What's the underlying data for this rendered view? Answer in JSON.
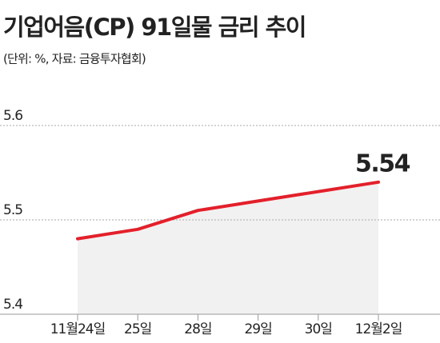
{
  "chart_data": {
    "type": "line",
    "title": "기업어음(CP) 91일물 금리 추이",
    "subtitle": "(단위: %, 자료: 금융투자협회)",
    "categories": [
      "11월24일",
      "25일",
      "28일",
      "29일",
      "30일",
      "12월2일"
    ],
    "values": [
      5.48,
      5.49,
      5.51,
      5.52,
      5.53,
      5.54
    ],
    "color": "#e3202b",
    "ylim": [
      5.4,
      5.6
    ],
    "yticks": [
      5.4,
      5.5,
      5.6
    ],
    "grid": true,
    "area": true
  }
}
